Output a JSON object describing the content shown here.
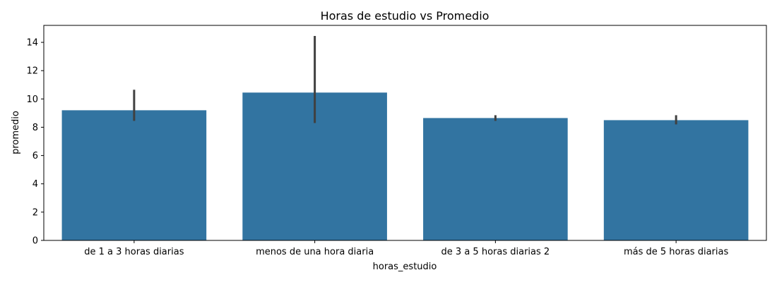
{
  "chart_data": {
    "type": "bar",
    "title": "Horas de estudio vs Promedio",
    "xlabel": "horas_estudio",
    "ylabel": "promedio",
    "categories": [
      "de 1 a 3 horas diarias",
      "menos de una hora diaria",
      "de 3 a 5 horas diarias 2",
      "más de 5 horas diarias"
    ],
    "values": [
      9.2,
      10.45,
      8.65,
      8.5
    ],
    "error_low": [
      8.45,
      8.3,
      8.45,
      8.2
    ],
    "error_high": [
      10.65,
      14.45,
      8.85,
      8.85
    ],
    "ylim": [
      0,
      15.2
    ],
    "yticks": [
      0,
      2,
      4,
      6,
      8,
      10,
      12,
      14
    ],
    "grid": false,
    "legend": false,
    "bar_color": "#3274a1",
    "error_color": "#404040"
  }
}
